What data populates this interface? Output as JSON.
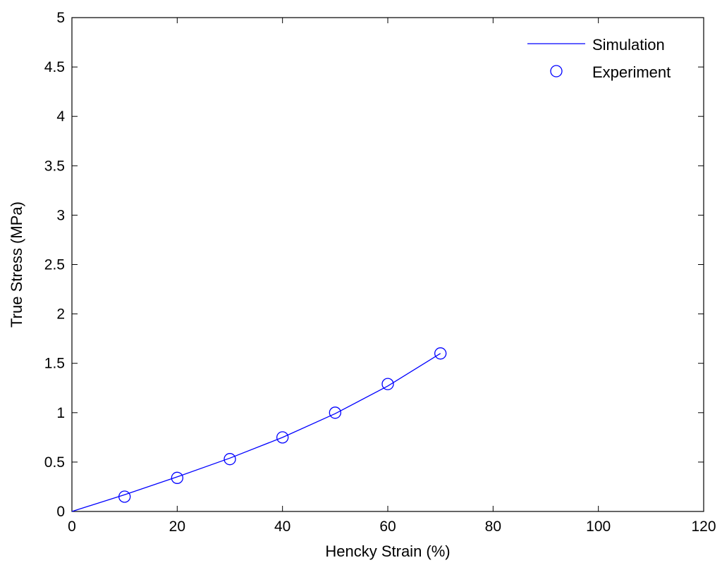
{
  "chart_data": {
    "type": "line",
    "xlabel": "Hencky Strain (%)",
    "ylabel": "True Stress (MPa)",
    "xlim": [
      0,
      120
    ],
    "ylim": [
      0,
      5
    ],
    "xticks": [
      0,
      20,
      40,
      60,
      80,
      100,
      120
    ],
    "yticks": [
      0,
      0.5,
      1,
      1.5,
      2,
      2.5,
      3,
      3.5,
      4,
      4.5,
      5
    ],
    "grid": false,
    "legend_position": "top-right",
    "series_color": "#0000ff",
    "series": [
      {
        "name": "Simulation",
        "style": "line",
        "x": [
          0,
          10,
          20,
          30,
          40,
          50,
          60,
          70
        ],
        "y": [
          0,
          0.17,
          0.35,
          0.54,
          0.75,
          0.99,
          1.27,
          1.6
        ]
      },
      {
        "name": "Experiment",
        "style": "circle-markers",
        "x": [
          10,
          20,
          30,
          40,
          50,
          60,
          70
        ],
        "y": [
          0.15,
          0.34,
          0.53,
          0.75,
          1.0,
          1.29,
          1.6
        ]
      }
    ]
  }
}
